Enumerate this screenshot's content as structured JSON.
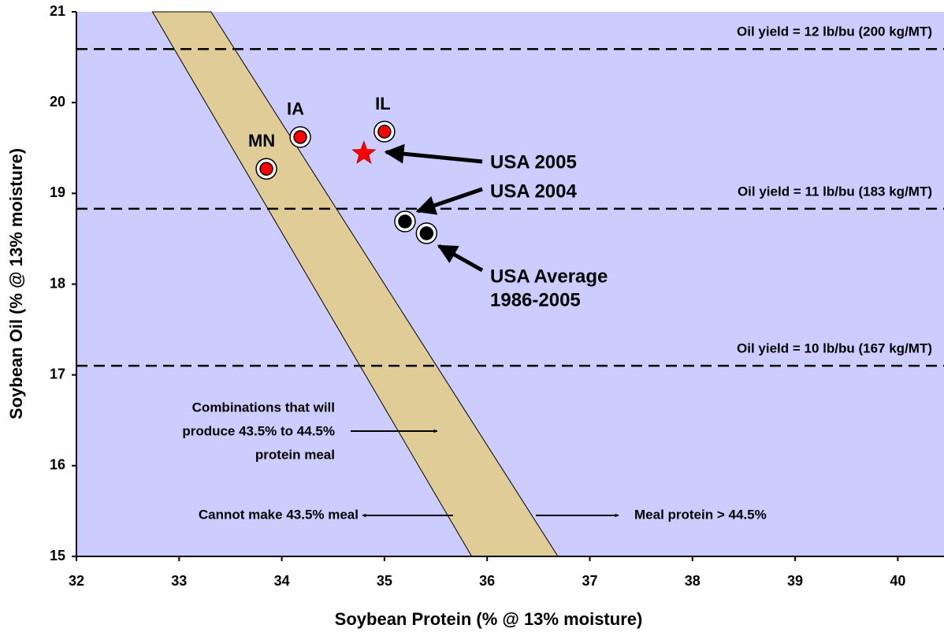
{
  "chart_data": {
    "type": "scatter",
    "x_label": "Soybean Protein (% @ 13% moisture)",
    "y_label": "Soybean Oil (% @ 13% moisture)",
    "xlim": [
      32,
      40.45
    ],
    "ylim": [
      15,
      21
    ],
    "xticks": [
      32,
      33,
      34,
      35,
      36,
      37,
      38,
      39,
      40
    ],
    "yticks": [
      15,
      16,
      17,
      18,
      19,
      20,
      21
    ],
    "background": "#ccccff",
    "band": {
      "x": [
        32.74,
        33.31,
        36.69,
        35.85
      ],
      "y": [
        21,
        21,
        15,
        15
      ],
      "color": "#e0cc96"
    },
    "hlines": [
      {
        "y": 20.59,
        "label": "Oil yield = 12 lb/bu (200 kg/MT)"
      },
      {
        "y": 18.83,
        "label": "Oil yield = 11 lb/bu (183 kg/MT)"
      },
      {
        "y": 17.1,
        "label": "Oil yield = 10 lb/bu (167 kg/MT)"
      }
    ],
    "points": [
      {
        "label": "MN",
        "x": 33.85,
        "y": 19.27,
        "color": "#ff0000",
        "marker": "circle"
      },
      {
        "label": "IA",
        "x": 34.18,
        "y": 19.62,
        "color": "#ff0000",
        "marker": "circle"
      },
      {
        "label": "IL",
        "x": 35.0,
        "y": 19.68,
        "color": "#ff0000",
        "marker": "circle"
      },
      {
        "x": 34.8,
        "y": 19.44,
        "color": "#ff0000",
        "marker": "star"
      },
      {
        "x": 35.2,
        "y": 18.69,
        "color": "#000000",
        "marker": "circle"
      },
      {
        "x": 35.41,
        "y": 18.56,
        "color": "#000000",
        "marker": "circle"
      }
    ],
    "annotations": [
      {
        "lines": [
          "USA 2005"
        ]
      },
      {
        "lines": [
          "USA 2004"
        ]
      },
      {
        "lines": [
          "USA Average",
          "1986-2005"
        ]
      },
      {
        "lines": [
          "Combinations that will",
          "produce 43.5% to 44.5%",
          "protein meal"
        ]
      },
      {
        "lines": [
          "Cannot make 43.5% meal"
        ]
      },
      {
        "lines": [
          "Meal protein > 44.5%"
        ]
      }
    ]
  }
}
